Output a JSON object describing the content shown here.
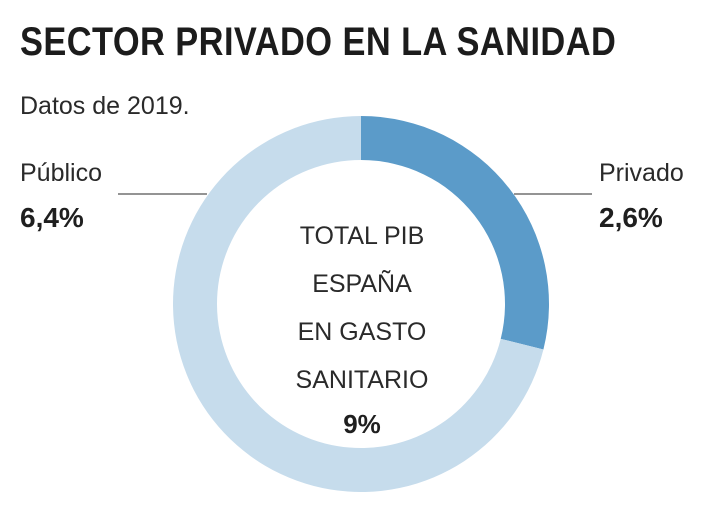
{
  "chart_data": {
    "type": "pie",
    "title": "SECTOR PRIVADO EN LA SANIDAD",
    "subtitle": "Datos de 2019.",
    "slices": [
      {
        "label": "Privado",
        "value": 2.6,
        "display": "2,6%",
        "color": "#5b9bc9"
      },
      {
        "label": "Público",
        "value": 6.4,
        "display": "6,4%",
        "color": "#c6dcec"
      }
    ],
    "center": {
      "lines": [
        "TOTAL PIB",
        "ESPAÑA",
        "EN GASTO",
        "SANITARIO"
      ],
      "total": "9%"
    }
  }
}
